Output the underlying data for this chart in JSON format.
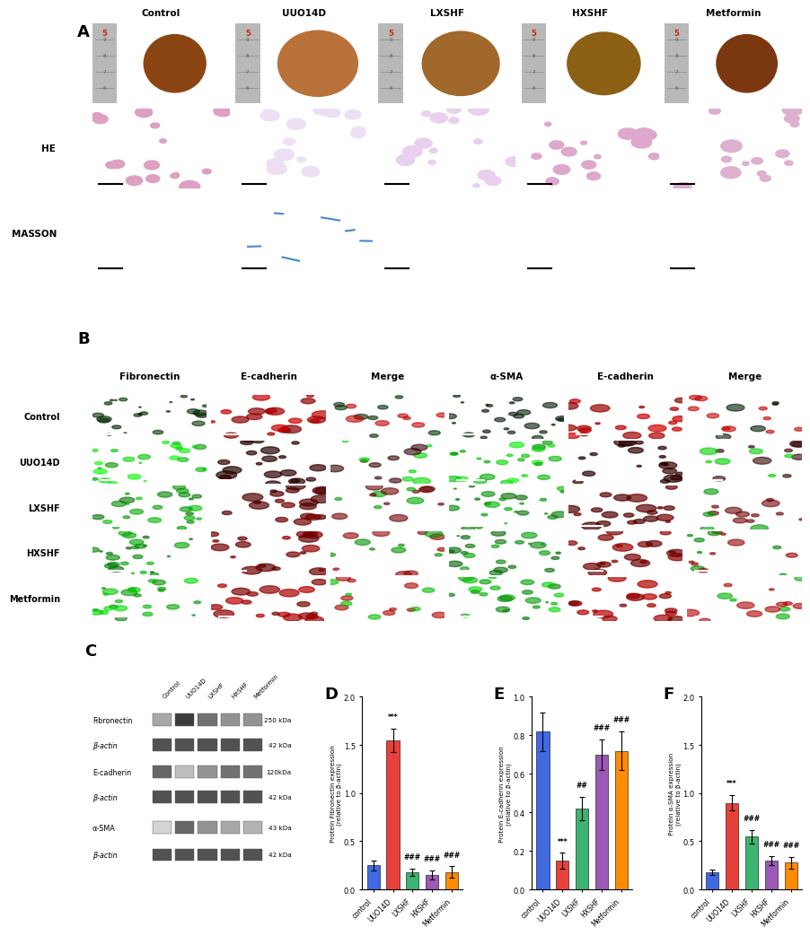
{
  "groups": [
    "Control",
    "UUO14D",
    "LXSHF",
    "HXSHF",
    "Metformin"
  ],
  "group_labels_rotated": [
    "control",
    "UUO14D",
    "LXSHF",
    "HXSHF",
    "Metformin"
  ],
  "row_labels_B": [
    "Control",
    "UUO14D",
    "LXSHF",
    "HXSHF",
    "Metformin"
  ],
  "col_labels_B": [
    "Fibronectin",
    "E-cadherin",
    "Merge",
    "α-SMA",
    "E-cadherin",
    "Merge"
  ],
  "western_labels": [
    "Fibronectin",
    "β-actin",
    "E-cadherin",
    "β-actin",
    "α-SMA",
    "β-actin"
  ],
  "western_kda": [
    "250 kDa",
    "42 kDa",
    "120kDa",
    "42 kDa",
    "43 kDa",
    "42 kDa"
  ],
  "bar_colors": [
    "#4169e1",
    "#e8413b",
    "#3cb371",
    "#9b59b6",
    "#ff8c00"
  ],
  "D_values": [
    0.25,
    1.55,
    0.18,
    0.15,
    0.18
  ],
  "D_errors": [
    0.05,
    0.12,
    0.04,
    0.05,
    0.06
  ],
  "D_ylabel": "Protein Fibronectin expression\n(relative to β-actin)",
  "D_ylim": [
    0,
    2.0
  ],
  "D_yticks": [
    0,
    0.5,
    1.0,
    1.5,
    2.0
  ],
  "E_values": [
    0.82,
    0.15,
    0.42,
    0.7,
    0.72
  ],
  "E_errors": [
    0.1,
    0.04,
    0.06,
    0.08,
    0.1
  ],
  "E_ylabel": "Protein E-cadherin expression\n(relative to β-actin)",
  "E_ylim": [
    0,
    1.0
  ],
  "E_yticks": [
    0,
    0.2,
    0.4,
    0.6,
    0.8,
    1.0
  ],
  "F_values": [
    0.18,
    0.9,
    0.55,
    0.3,
    0.28
  ],
  "F_errors": [
    0.03,
    0.08,
    0.07,
    0.05,
    0.06
  ],
  "F_ylabel": "Protein α-SMA expression\n(relative to β-actin)",
  "F_ylim": [
    0,
    2.0
  ],
  "F_yticks": [
    0,
    0.5,
    1.0,
    1.5,
    2.0
  ],
  "figure_bg": "#ffffff",
  "wb_intensities": [
    [
      0.4,
      0.9,
      0.65,
      0.5,
      0.5
    ],
    [
      0.8,
      0.8,
      0.8,
      0.8,
      0.8
    ],
    [
      0.7,
      0.3,
      0.5,
      0.65,
      0.65
    ],
    [
      0.8,
      0.8,
      0.8,
      0.8,
      0.8
    ],
    [
      0.2,
      0.7,
      0.5,
      0.4,
      0.35
    ],
    [
      0.8,
      0.8,
      0.8,
      0.8,
      0.8
    ]
  ],
  "D_sigs": [
    "",
    "***",
    "###",
    "###",
    "###"
  ],
  "E_sigs": [
    "",
    "***",
    "##",
    "###",
    "###"
  ],
  "F_sigs": [
    "",
    "***",
    "###",
    "###",
    "###"
  ]
}
